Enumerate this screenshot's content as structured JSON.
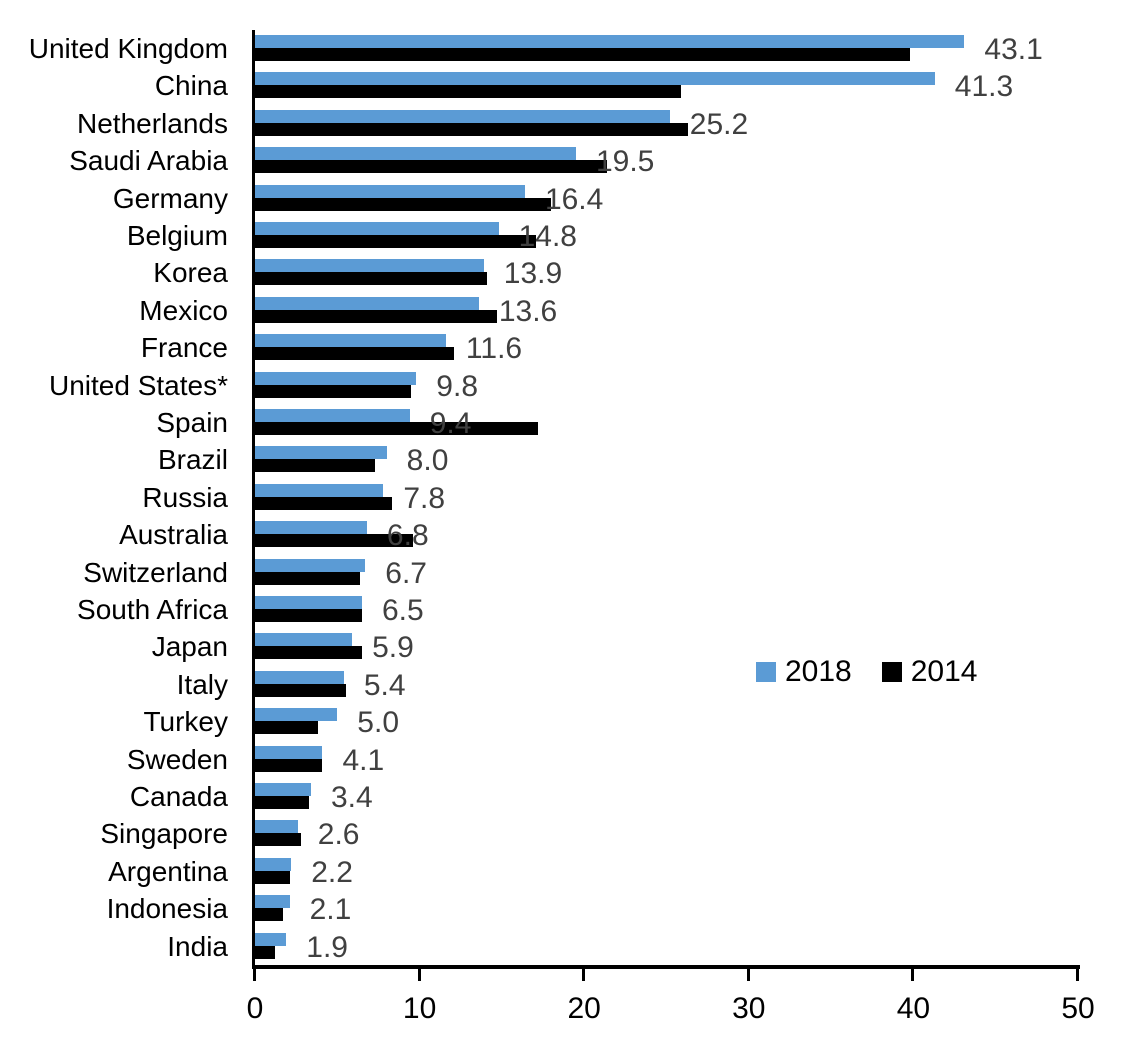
{
  "chart_data": {
    "type": "bar",
    "orientation": "horizontal",
    "title": "",
    "xlabel": "",
    "ylabel": "",
    "xlim": [
      0,
      50
    ],
    "x_ticks": [
      "0",
      "10",
      "20",
      "30",
      "40",
      "50"
    ],
    "grid": false,
    "legend_position": "middle-right",
    "categories": [
      "United Kingdom",
      "China",
      "Netherlands",
      "Saudi Arabia",
      "Germany",
      "Belgium",
      "Korea",
      "Mexico",
      "France",
      "United States*",
      "Spain",
      "Brazil",
      "Russia",
      "Australia",
      "Switzerland",
      "South Africa",
      "Japan",
      "Italy",
      "Turkey",
      "Sweden",
      "Canada",
      "Singapore",
      "Argentina",
      "Indonesia",
      "India"
    ],
    "series": [
      {
        "name": "2018",
        "color": "#5B9BD5",
        "values": [
          43.1,
          41.3,
          25.2,
          19.5,
          16.4,
          14.8,
          13.9,
          13.6,
          11.6,
          9.8,
          9.4,
          8.0,
          7.8,
          6.8,
          6.7,
          6.5,
          5.9,
          5.4,
          5.0,
          4.1,
          3.4,
          2.6,
          2.2,
          2.1,
          1.9
        ]
      },
      {
        "name": "2014",
        "color": "#000000",
        "values": [
          39.8,
          25.9,
          26.3,
          21.4,
          18.0,
          17.1,
          14.1,
          14.7,
          12.1,
          9.5,
          17.2,
          7.3,
          8.3,
          9.6,
          6.4,
          6.5,
          6.5,
          5.5,
          3.8,
          4.1,
          3.3,
          2.8,
          2.1,
          1.7,
          1.2
        ]
      }
    ],
    "data_labels": [
      "43.1",
      "41.3",
      "25.2",
      "19.5",
      "16.4",
      "14.8",
      "13.9",
      "13.6",
      "11.6",
      "9.8",
      "9.4",
      "8.0",
      "7.8",
      "6.8",
      "6.7",
      "6.5",
      "5.9",
      "5.4",
      "5.0",
      "4.1",
      "3.4",
      "2.6",
      "2.2",
      "2.1",
      "1.9"
    ],
    "data_label_series": "2018",
    "data_label_color": "#404040"
  }
}
